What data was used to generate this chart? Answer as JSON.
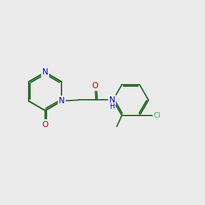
{
  "bg_color": "#ebebeb",
  "bond_color": "#2d6b2d",
  "bond_width": 1.4,
  "atom_colors": {
    "N": "#0000cc",
    "O": "#cc0000",
    "Cl": "#4aaa4a",
    "C": "#2d6b2d",
    "H": "#555555"
  },
  "font_size": 8.5
}
